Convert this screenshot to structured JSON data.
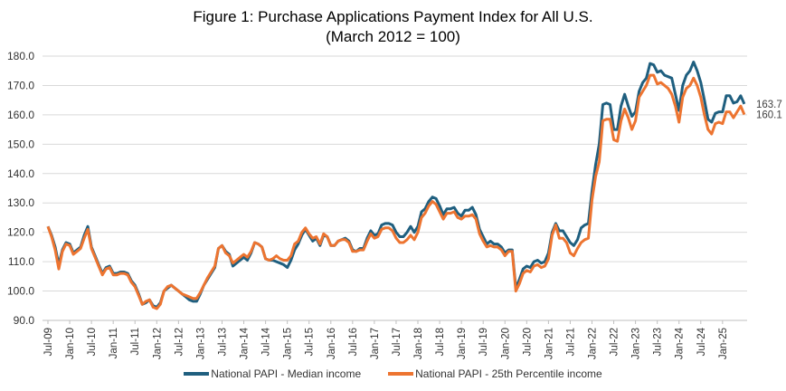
{
  "chart_data": {
    "type": "line",
    "title": "Figure 1: Purchase Applications Payment Index for All U.S.",
    "subtitle": "(March 2012 = 100)",
    "xlabel": "",
    "ylabel": "",
    "ylim": [
      90,
      180
    ],
    "yticks": [
      "90.0",
      "100.0",
      "110.0",
      "120.0",
      "130.0",
      "140.0",
      "150.0",
      "160.0",
      "170.0",
      "180.0"
    ],
    "grid": true,
    "legend": "bottom",
    "x_start": "Jul-09",
    "x_frequency": "monthly",
    "xtick_labels": [
      "Jul-09",
      "Jan-10",
      "Jul-10",
      "Jan-11",
      "Jul-11",
      "Jan-12",
      "Jul-12",
      "Jan-13",
      "Jul-13",
      "Jan-14",
      "Jul-14",
      "Jan-15",
      "Jul-15",
      "Jan-16",
      "Jul-16",
      "Jan-17",
      "Jul-17",
      "Jan-18",
      "Jul-18",
      "Jan-19",
      "Jul-19",
      "Jan-20",
      "Jul-20",
      "Jan-21",
      "Jul-21",
      "Jan-22",
      "Jul-22",
      "Jan-23",
      "Jul-23",
      "Jan-24",
      "Jul-24",
      "Jan-25"
    ],
    "series": [
      {
        "name": "National PAPI - Median income",
        "color": "#1f5f7f",
        "end_label": "163.7",
        "values": [
          122,
          119,
          115,
          109,
          114,
          116.5,
          116,
          113,
          114,
          115,
          119,
          122,
          115,
          112,
          109,
          106,
          108,
          108.5,
          106,
          106,
          106.5,
          106.5,
          106,
          103.5,
          102,
          99,
          95.5,
          96,
          97,
          95,
          94.5,
          96,
          100,
          101,
          102,
          101,
          100,
          99,
          98,
          97,
          96.5,
          96.5,
          99,
          102,
          104,
          106,
          108,
          114.5,
          115.5,
          113.5,
          112.5,
          108.5,
          109.5,
          110.5,
          111.5,
          110.5,
          113,
          116.5,
          116,
          115,
          111,
          110.5,
          110.5,
          110,
          109.5,
          109,
          108,
          110.5,
          114,
          116,
          119,
          121,
          119,
          117,
          118,
          115.5,
          119,
          118.5,
          115.5,
          115.5,
          117,
          117.5,
          118,
          117,
          114,
          113.5,
          114.5,
          114.5,
          118,
          120.5,
          119,
          119.5,
          122.5,
          123,
          123,
          122.5,
          120,
          118.5,
          118.5,
          120,
          122,
          120,
          122,
          127,
          128,
          130.5,
          132,
          131.5,
          129,
          126,
          128,
          128,
          128.5,
          126.5,
          125.5,
          127.5,
          127.5,
          128.5,
          126,
          121,
          118.5,
          116,
          117,
          116,
          116,
          115,
          113,
          114,
          114,
          101,
          104,
          107.5,
          108.5,
          108,
          110,
          110.5,
          109.5,
          110,
          113,
          120,
          123,
          120.5,
          120.5,
          118.5,
          116.5,
          115.5,
          117.5,
          121.5,
          122.5,
          123,
          134,
          143,
          150,
          163.5,
          164,
          163.5,
          155,
          155,
          163,
          167,
          163,
          159.5,
          161,
          168,
          171,
          172.5,
          177.5,
          177,
          174.5,
          175,
          173.5,
          173,
          172.5,
          167,
          161.5,
          170,
          173.5,
          175,
          178,
          175,
          171,
          165,
          158.5,
          157.5,
          160.5,
          161,
          161,
          166.5,
          166.5,
          164,
          164.5,
          166.5,
          163.7
        ]
      },
      {
        "name": "National PAPI - 25th Percentile income",
        "color": "#ed7430",
        "end_label": "160.1",
        "values": [
          122,
          118.5,
          114,
          107.5,
          113.5,
          116,
          115.5,
          112.5,
          113.5,
          114.5,
          118,
          121,
          114.5,
          111.5,
          108.5,
          105.5,
          107.5,
          108,
          105.5,
          105.5,
          106,
          106,
          105.5,
          103,
          101.5,
          98.5,
          95.5,
          96.5,
          97,
          94.5,
          94,
          95.5,
          100,
          101.5,
          102,
          101,
          100,
          99,
          98.5,
          98,
          97.5,
          97.5,
          99.5,
          102,
          104.5,
          106.5,
          108.5,
          114.5,
          115.5,
          113,
          112,
          109.5,
          110.5,
          111.5,
          112.5,
          111.5,
          113.5,
          116.5,
          116,
          115,
          111,
          110.5,
          111,
          112,
          111,
          110.5,
          110.5,
          112,
          116,
          117,
          120,
          121.5,
          119.5,
          118,
          118.5,
          116,
          119.5,
          118.5,
          115.5,
          115.5,
          117,
          117.5,
          117.5,
          116.5,
          113.5,
          113.5,
          114,
          114,
          117,
          119.5,
          118,
          118.5,
          121,
          121.5,
          121.5,
          120.5,
          118,
          116.5,
          116.5,
          117.5,
          119,
          117.5,
          120,
          125,
          126.5,
          129,
          130.5,
          129.5,
          127,
          124.5,
          126.5,
          126.5,
          127,
          125,
          124.5,
          125.5,
          125.5,
          126,
          124.5,
          119.5,
          117,
          115,
          115.5,
          115,
          115,
          114,
          112,
          113.5,
          113.5,
          100,
          102.5,
          106,
          107,
          106.5,
          108.5,
          109,
          108,
          108.5,
          111,
          119,
          122.5,
          118,
          118,
          116.5,
          113,
          112,
          114.5,
          116.5,
          117.5,
          118,
          131,
          139,
          144,
          158,
          158.5,
          158.5,
          151.5,
          151,
          158,
          162,
          159,
          155,
          158,
          166,
          168,
          170,
          173.5,
          173.5,
          170.5,
          171,
          170,
          169,
          167,
          163,
          157.5,
          166,
          169,
          170,
          172.5,
          170,
          166,
          160,
          155,
          153.5,
          157,
          157.5,
          157,
          161,
          161,
          159,
          161,
          163,
          160.1
        ]
      }
    ]
  }
}
